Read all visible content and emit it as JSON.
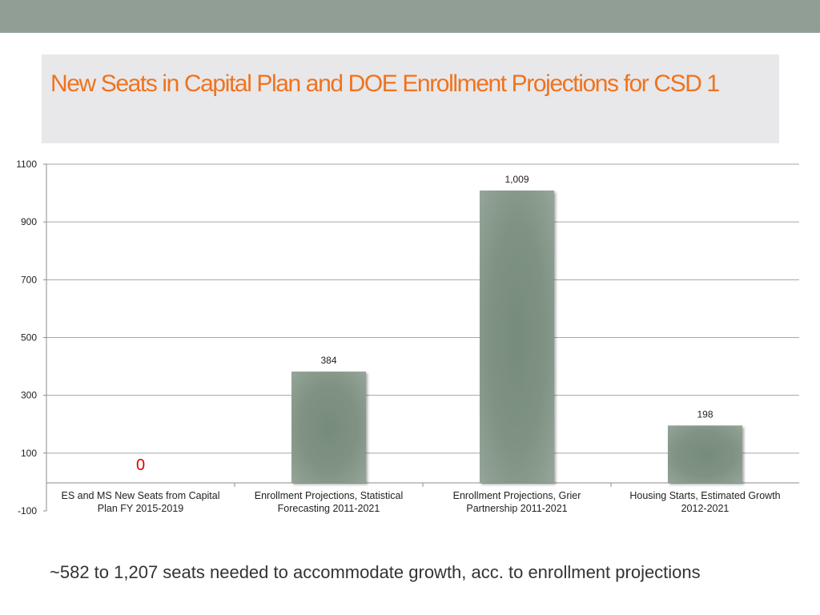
{
  "colors": {
    "band": "#909e95",
    "title": "#f0731e",
    "bar": "#7f9283",
    "zero_label": "#e00000"
  },
  "slide": {
    "title": "New Seats in Capital Plan and DOE Enrollment Projections for CSD 1",
    "footnote": "~582 to 1,207 seats needed to accommodate growth, acc. to enrollment projections"
  },
  "chart_data": {
    "type": "bar",
    "categories": [
      [
        "ES and MS New Seats from Capital",
        "Plan FY 2015-2019"
      ],
      [
        "Enrollment Projections, Statistical",
        "Forecasting 2011-2021"
      ],
      [
        "Enrollment Projections, Grier",
        "Partnership 2011-2021"
      ],
      [
        "Housing Starts, Estimated Growth",
        "2012-2021"
      ]
    ],
    "values": [
      0,
      384,
      1009,
      198
    ],
    "data_labels": [
      "0",
      "384",
      "1,009",
      "198"
    ],
    "ylim": [
      -100,
      1100
    ],
    "yticks": [
      -100,
      100,
      300,
      500,
      700,
      900,
      1100
    ],
    "grid": true,
    "legend": "none"
  }
}
